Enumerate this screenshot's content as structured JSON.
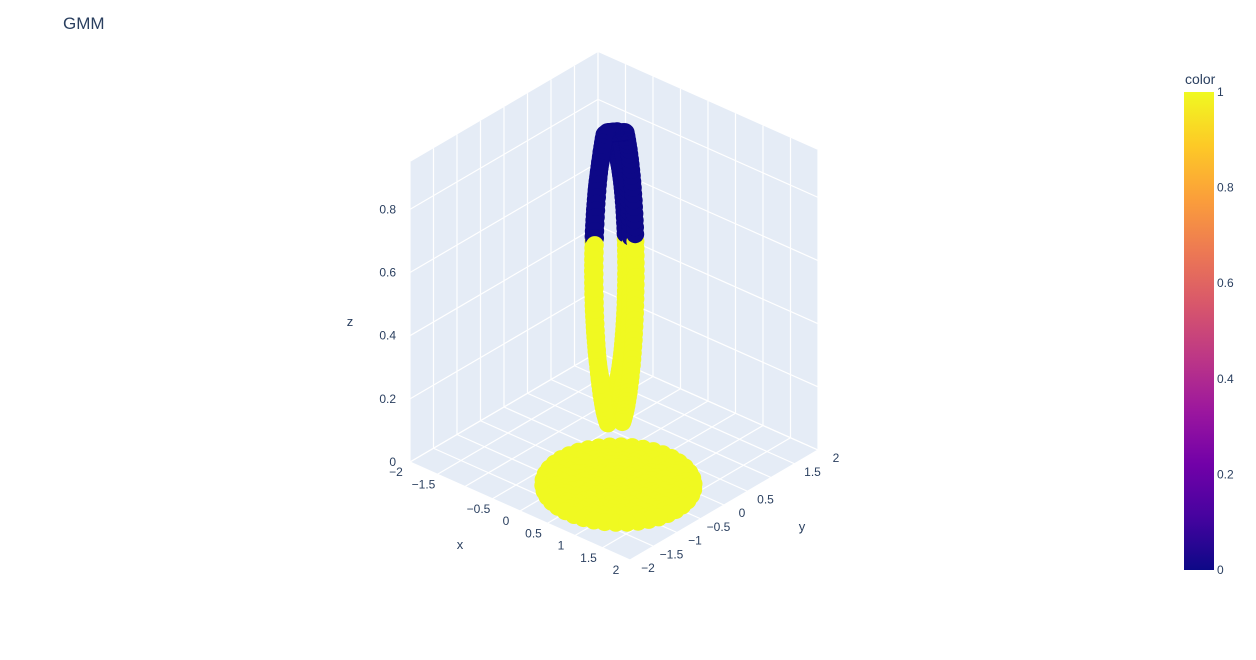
{
  "chart_data": {
    "type": "scatter3d",
    "title": "GMM",
    "axes": {
      "x": {
        "label": "x",
        "range": [
          -2,
          2
        ],
        "ticks": [
          "−2",
          "−1.5",
          "−0.5",
          "0",
          "0.5",
          "1",
          "1.5",
          "2"
        ],
        "tick_values": [
          -2,
          -1.5,
          -0.5,
          0,
          0.5,
          1,
          1.5,
          2
        ]
      },
      "y": {
        "label": "y",
        "range": [
          -2,
          2
        ],
        "ticks": [
          "−2",
          "−1.5",
          "−1",
          "−0.5",
          "0",
          "0.5",
          "1.5",
          "2"
        ],
        "tick_values": [
          -2,
          -1.5,
          -1,
          -0.5,
          0,
          0.5,
          1.5,
          2
        ]
      },
      "z": {
        "label": "z",
        "range": [
          0,
          0.95
        ],
        "ticks": [
          "0",
          "0.2",
          "0.4",
          "0.6",
          "0.8"
        ],
        "tick_values": [
          0,
          0.2,
          0.4,
          0.6,
          0.8
        ]
      }
    },
    "colorbar": {
      "title": "color",
      "ticks": [
        "0",
        "0.2",
        "0.4",
        "0.6",
        "0.8",
        "1"
      ],
      "tick_values": [
        0,
        0.2,
        0.4,
        0.6,
        0.8,
        1
      ],
      "colorscale": [
        "#0d0887",
        "#46039f",
        "#7201a8",
        "#9c179e",
        "#bd3786",
        "#d8576b",
        "#ed7953",
        "#fb9f3a",
        "#fdca26",
        "#f0f921"
      ]
    },
    "clusters": [
      {
        "color_value": 0,
        "color": "#0d0887",
        "description_shape": "torus-top"
      },
      {
        "color_value": 1,
        "color": "#f0f921",
        "description_shape": "disk-and-torus-bottom"
      }
    ],
    "background": "#e5ecf6",
    "grid": true
  }
}
